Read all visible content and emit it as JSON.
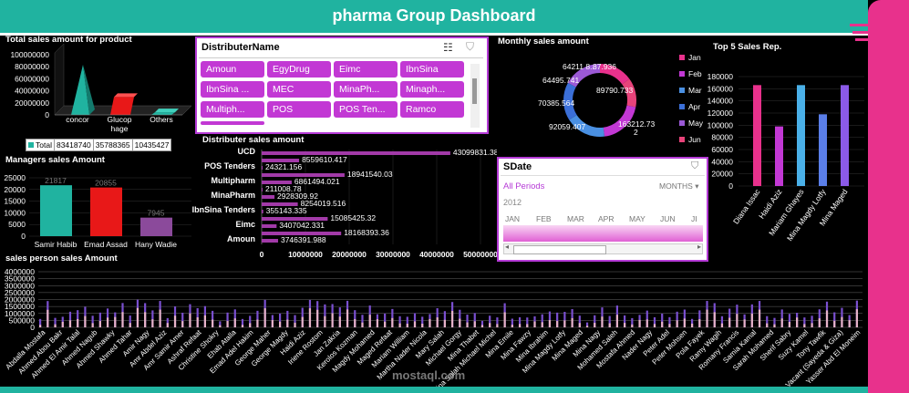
{
  "dashboard": {
    "title": "pharma Group  Dashboard"
  },
  "product_chart": {
    "title": "Total sales amount for product",
    "y_ticks": [
      "100000000",
      "80000000",
      "60000000",
      "40000000",
      "20000000",
      "0"
    ],
    "categories": [
      "concor",
      "Glucop hage",
      "Others"
    ],
    "legend": "Total",
    "values_text": [
      "83418740",
      "35788365",
      "10435427"
    ],
    "colors": [
      "#20b3a0",
      "#e81818",
      "#20b3a0"
    ]
  },
  "distributer_slicer": {
    "title": "DistributerName",
    "items": [
      "Amoun",
      "EgyDrug",
      "Eimc",
      "IbnSina",
      "IbnSina ...",
      "MEC",
      "MinaPh...",
      "Minaph...",
      "Multiph...",
      "POS",
      "POS Ten...",
      "Ramco"
    ]
  },
  "monthly_chart": {
    "title": "Monthly  sales amount",
    "labels": [
      "64211 8...",
      "87.936",
      "64495.741",
      "89790.733",
      "70385.564",
      "163212.73 2",
      "92059.407"
    ],
    "legend": [
      "Jan",
      "Feb",
      "Mar",
      "Apr",
      "May",
      "Jun"
    ],
    "colors": [
      "#e8318c",
      "#c238d4",
      "#4a90e2",
      "#3b6fd8",
      "#9b59d6",
      "#e8437a"
    ]
  },
  "top5_chart": {
    "title": "Top 5 Sales  Rep.",
    "y_ticks": [
      "180000",
      "160000",
      "140000",
      "120000",
      "100000",
      "80000",
      "60000",
      "40000",
      "20000",
      "0"
    ],
    "categories": [
      "Diana Issac",
      "Haidi Aziz",
      "Mariam Ghayes",
      "Mina Magdy Lotfy",
      "Mina Maged"
    ],
    "colors": [
      "#e8318c",
      "#c238d4",
      "#4ab0e8",
      "#5a7ee8",
      "#8b5ae8"
    ]
  },
  "managers_chart": {
    "title": "Managers sales Amount",
    "y_ticks": [
      "25000",
      "20000",
      "15000",
      "10000",
      "5000",
      "0"
    ],
    "categories": [
      "Samir Habib",
      "Emad Assad",
      "Hany Wadie"
    ],
    "values_text": [
      "21817",
      "20855",
      "7945"
    ],
    "colors": [
      "#20b3a0",
      "#e81818",
      "#8b4a9b"
    ]
  },
  "distributer_chart": {
    "title": "Distributer sales amount",
    "labels": [
      "UCD",
      "POS Tenders",
      "Multipharm",
      "MinaPharm",
      "IbnSina Tenders",
      "Eimc",
      "Amoun"
    ],
    "values_text": [
      "43099831.38",
      "8559610.417",
      "24321.156",
      "18941540.03",
      "6861494.021",
      "211008.78",
      "2928309.92",
      "8254019.516",
      "355143.335",
      "15085425.32",
      "3407042.331",
      "18168393.36",
      "3746391.988"
    ],
    "x_ticks": [
      "0",
      "10000000",
      "20000000",
      "30000000",
      "40000000",
      "50000000"
    ]
  },
  "date_slicer": {
    "title": "SDate",
    "all_periods": "All Periods",
    "unit": "MONTHS",
    "year": "2012",
    "months": [
      "JAN",
      "FEB",
      "MAR",
      "APR",
      "MAY",
      "JUN",
      "JI"
    ]
  },
  "salesperson_chart": {
    "title": "sales person sales Amount",
    "y_ticks": [
      "4000000",
      "3500000",
      "3000000",
      "2500000",
      "2000000",
      "1500000",
      "1000000",
      "500000",
      "0"
    ],
    "names": [
      "Abdalla Mostafa",
      "Ahmed Abou Bakr",
      "Ahmed El Amir Talal",
      "Ahmed Nagub",
      "Ahmed Shawky",
      "Ahmed Tahar",
      "Amir Nagy",
      "Amr Abdel Aziz",
      "Amr Samir Amer",
      "Ashraf Refaat",
      "Christine Shokry",
      "Ehab Atalla",
      "Emad Adel Hakim",
      "George Maher",
      "George Magdy",
      "Haidi Aziz",
      "Iriene Rostom",
      "Jan Zakria",
      "Kerolos Kozman",
      "Magdy Mohamed",
      "Maged Refaat",
      "Mariam William",
      "Martha Nader Nicola",
      "Mary Salah",
      "Michael Gorgy",
      "Mina Thabet",
      "Mina Salah Michael Michel",
      "Mina Emile",
      "Mina Fawzy",
      "Mina Ibrahim",
      "Mina Magdy Lotfy",
      "Mina Maged",
      "Mina Nagy",
      "Mohamed Saleh",
      "Mostafa Ahmed",
      "Nader Nagy",
      "Peter Adel",
      "Peter Mohsen",
      "Pola Fayek",
      "Ramy Wagih",
      "Romany Francis",
      "Samia Kamal",
      "Sarah Mohamed",
      "Sherif Sabry",
      "Suzy Kamel",
      "Tony Tawfik",
      "Vacant (Sayeda & Giza)",
      "Yasser Abd El Moneim"
    ]
  },
  "watermark": "mostaql.com"
}
